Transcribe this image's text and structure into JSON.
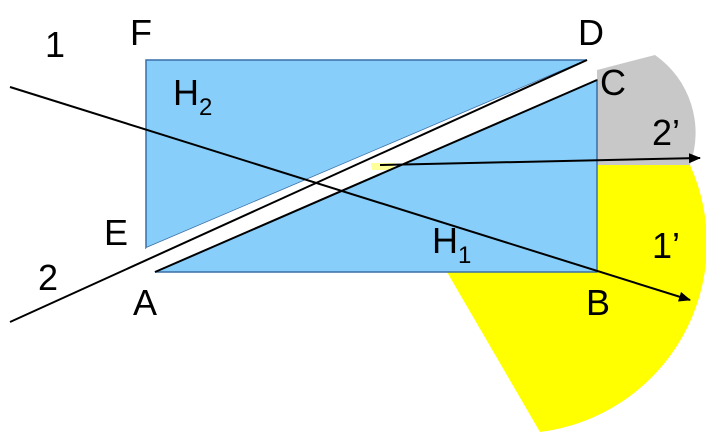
{
  "labels": {
    "ray1": "1",
    "ray2": "2",
    "ray1_out": "1’",
    "ray2_out": "2’",
    "F": "F",
    "D": "D",
    "C": "C",
    "E": "E",
    "A": "A",
    "B": "B",
    "H2": {
      "base": "H",
      "sub": "2"
    },
    "H1": {
      "base": "H",
      "sub": "1"
    }
  },
  "colors": {
    "prism_fill": "#87cefa",
    "prism_stroke": "#3a6ea5",
    "gap_fill": "#ffffff",
    "yellow_sector": "#ffff00",
    "gray_sector": "#c8c8c8",
    "ray_stroke": "#000000"
  }
}
